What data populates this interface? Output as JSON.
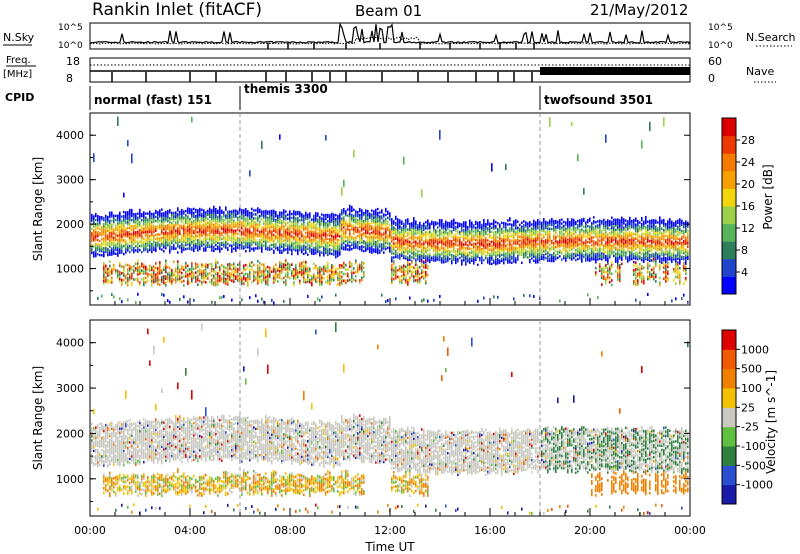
{
  "header": {
    "station": "Rankin Inlet (fitACF)",
    "beam": "Beam 01",
    "date": "21/May/2012"
  },
  "noise": {
    "left_label": "N.Sky",
    "right_label": "N.Search",
    "ticks_left": [
      "10^5",
      "10^0"
    ],
    "ticks_right": [
      "10^5",
      "10^0"
    ]
  },
  "freq": {
    "left_label_1": "Freq.",
    "left_label_2": "[MHz]",
    "cpid_label": "CPID",
    "ticks_left": [
      "18",
      "8"
    ],
    "ticks_right": [
      "60",
      "0"
    ],
    "right_label": "Nave"
  },
  "cpid_segments": [
    {
      "label": "normal (fast) 151",
      "start_hour": 0
    },
    {
      "label": "themis 3300",
      "start_hour": 6
    },
    {
      "label": "twofsound 3501",
      "start_hour": 18
    }
  ],
  "colors": {
    "power_scale": [
      "#0000ff",
      "#2244cc",
      "#2e7d5b",
      "#58b35a",
      "#9ed14a",
      "#f2d60c",
      "#f5a000",
      "#f57a00",
      "#ee3a00",
      "#dd0000"
    ],
    "velocity_scale": [
      "#1a1aa8",
      "#2a4fd0",
      "#2e8040",
      "#5fc040",
      "#c8c8c0",
      "#f2c200",
      "#f08000",
      "#f05a00",
      "#e00000"
    ]
  },
  "chart_data": [
    {
      "type": "heatmap",
      "title": "Power",
      "ylabel": "Slant Range [km]",
      "xlabel": "",
      "x_range_hours": [
        0,
        24
      ],
      "ylim": [
        180,
        4500
      ],
      "y_ticks": [
        1000,
        2000,
        3000,
        4000
      ],
      "y_tick_labels": [
        "1000",
        "2000",
        "3000",
        "4000"
      ],
      "colorbar": {
        "label": "Power [dB]",
        "ticks": [
          "28",
          "24",
          "20",
          "16",
          "12",
          "8",
          "4"
        ],
        "range": [
          0,
          30
        ]
      }
    },
    {
      "type": "heatmap",
      "title": "Velocity",
      "ylabel": "Slant Range [km]",
      "xlabel": "Time UT",
      "x_range_hours": [
        0,
        24
      ],
      "x_tick_labels": [
        "00:00",
        "04:00",
        "08:00",
        "12:00",
        "16:00",
        "20:00",
        "00:00"
      ],
      "ylim": [
        180,
        4500
      ],
      "y_ticks": [
        1000,
        2000,
        3000,
        4000
      ],
      "y_tick_labels": [
        "1000",
        "2000",
        "3000",
        "4000"
      ],
      "colorbar": {
        "label": "Velocity [m s^-1]",
        "ticks": [
          "1000",
          "500",
          "100",
          "25",
          "-25",
          "-100",
          "-500",
          "-1000"
        ]
      }
    }
  ]
}
